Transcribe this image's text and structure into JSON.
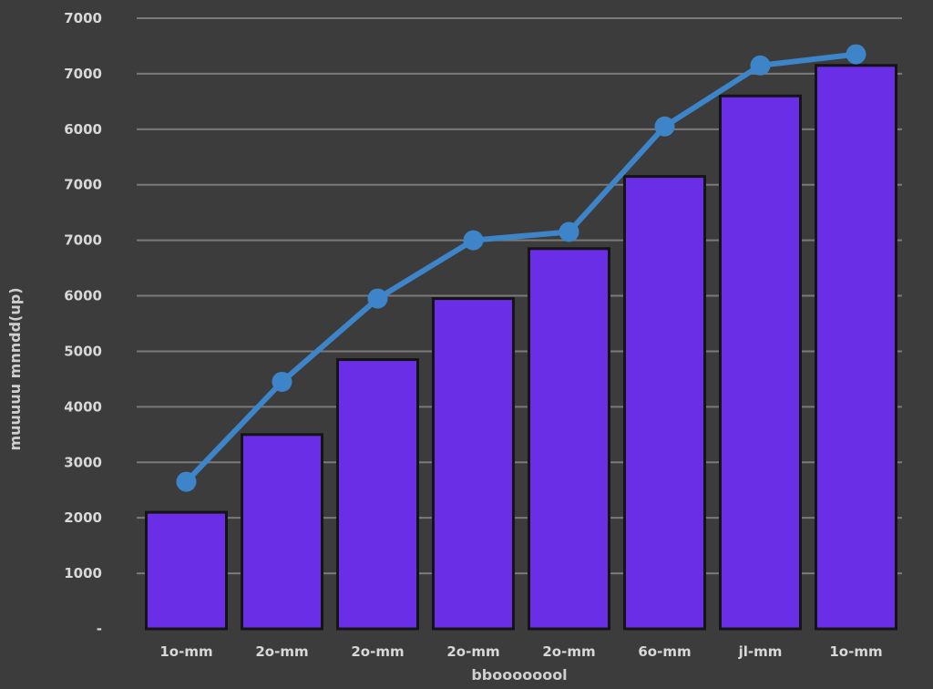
{
  "chart_data": {
    "type": "bar",
    "title": "",
    "xlabel": "bboooooool",
    "ylabel": "muuuuu mnndd(up)",
    "y_tick_labels": [
      "-",
      "1000",
      "2000",
      "3000",
      "4000",
      "5000",
      "6000",
      "7000",
      "7000",
      "6000",
      "7000",
      "7000"
    ],
    "categories": [
      "1o-mm",
      "2o-mm",
      "2o-mm",
      "2o-mm",
      "2o-mm",
      "6o-mm",
      "jl-mm",
      "1o-mm"
    ],
    "ylim": [
      0,
      11000
    ],
    "grid": true,
    "legend": "none",
    "series": [
      {
        "type": "bar",
        "color": "#6a2ee6",
        "values": [
          2100,
          3500,
          4850,
          5950,
          6850,
          8150,
          9600,
          10150
        ]
      },
      {
        "type": "line",
        "color": "#3d85c8",
        "values": [
          2650,
          4450,
          5950,
          7000,
          7150,
          9050,
          10150,
          10350
        ]
      }
    ]
  }
}
